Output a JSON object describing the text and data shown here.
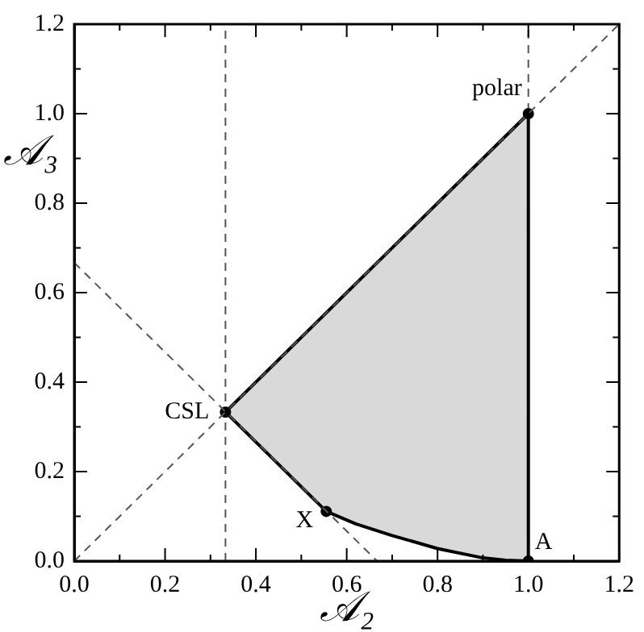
{
  "chart_data": {
    "type": "line",
    "xlabel": "𝒜₂",
    "ylabel": "𝒜₃",
    "xlim": [
      0,
      1.2
    ],
    "ylim": [
      0,
      1.2
    ],
    "xticks": [
      {
        "value": 0,
        "label": "0.0"
      },
      {
        "value": 0.1,
        "label": null
      },
      {
        "value": 0.2,
        "label": "0.2"
      },
      {
        "value": 0.3,
        "label": null
      },
      {
        "value": 0.4,
        "label": "0.4"
      },
      {
        "value": 0.5,
        "label": null
      },
      {
        "value": 0.6,
        "label": "0.6"
      },
      {
        "value": 0.7,
        "label": null
      },
      {
        "value": 0.8,
        "label": "0.8"
      },
      {
        "value": 0.9,
        "label": null
      },
      {
        "value": 1,
        "label": "1.0"
      },
      {
        "value": 1.1,
        "label": null
      },
      {
        "value": 1.2,
        "label": "1.2"
      }
    ],
    "yticks": [
      {
        "value": 0,
        "label": "0.0"
      },
      {
        "value": 0.1,
        "label": null
      },
      {
        "value": 0.2,
        "label": "0.2"
      },
      {
        "value": 0.3,
        "label": null
      },
      {
        "value": 0.4,
        "label": "0.4"
      },
      {
        "value": 0.5,
        "label": null
      },
      {
        "value": 0.6,
        "label": "0.6"
      },
      {
        "value": 0.7,
        "label": null
      },
      {
        "value": 0.8,
        "label": "0.8"
      },
      {
        "value": 0.9,
        "label": null
      },
      {
        "value": 1,
        "label": "1.0"
      },
      {
        "value": 1.1,
        "label": null
      },
      {
        "value": 1.2,
        "label": "1.2"
      }
    ],
    "series": [
      {
        "type": "line",
        "line_style": "dashed",
        "marker": "none",
        "color": "#555555",
        "x": [
          0,
          1.2
        ],
        "values": [
          0,
          1.2
        ]
      },
      {
        "type": "line",
        "line_style": "dashed",
        "marker": "none",
        "color": "#555555",
        "x": [
          0,
          0.667
        ],
        "values": [
          0.667,
          0
        ]
      },
      {
        "type": "area",
        "line_style": "solid",
        "marker": "none",
        "color": "#d9d9d9",
        "x": [
          0.333,
          1,
          1,
          0.95,
          0.9,
          0.8,
          0.7,
          0.62,
          0.555,
          0.333
        ],
        "values": [
          0.333,
          1,
          0,
          0.002,
          0.007,
          0.028,
          0.057,
          0.083,
          0.111,
          0.333
        ]
      },
      {
        "type": "scatter",
        "marker": "circle",
        "color": "#000000",
        "x": [
          0.333,
          0.555,
          1,
          1
        ],
        "values": [
          0.333,
          0.111,
          1,
          0
        ]
      }
    ],
    "ref_lines": [
      {
        "axis": "x",
        "value": 0.333,
        "line_style": "dashed",
        "color": "#555555"
      },
      {
        "axis": "x",
        "value": 1,
        "line_style": "dashed",
        "color": "#555555"
      }
    ],
    "annotations": [
      {
        "text": "CSL",
        "x": 0.333,
        "y": 0.333
      },
      {
        "text": "X",
        "x": 0.555,
        "y": 0.111
      },
      {
        "text": "polar",
        "x": 1,
        "y": 1
      },
      {
        "text": "A",
        "x": 1,
        "y": 0
      }
    ],
    "grid": false,
    "legend": false
  }
}
